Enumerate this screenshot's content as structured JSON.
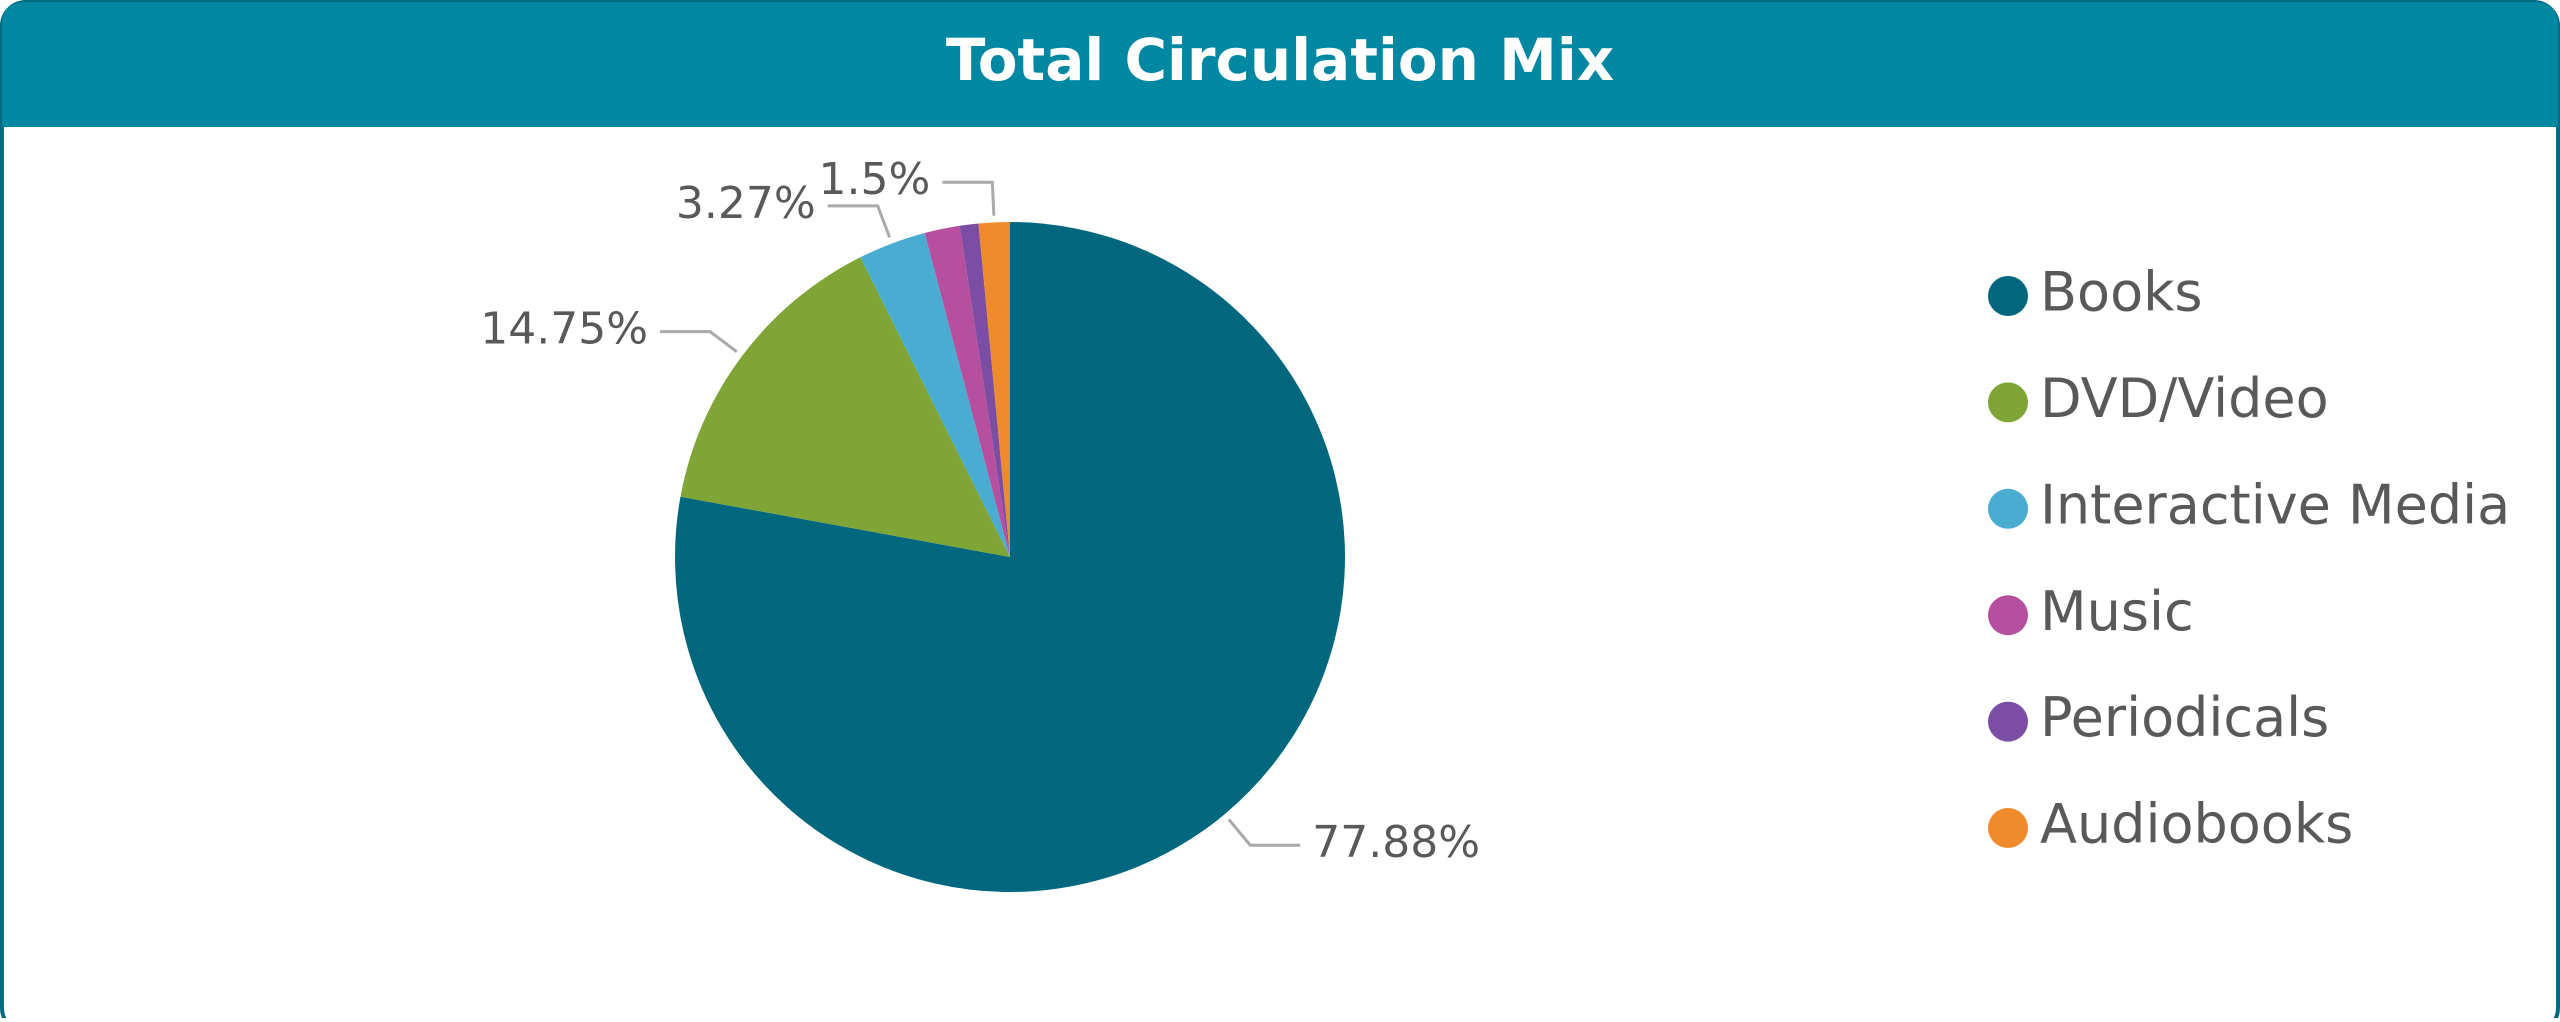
{
  "chart_data": {
    "type": "pie",
    "title": "Total Circulation Mix",
    "categories": [
      "Books",
      "DVD/Video",
      "Interactive Media",
      "Music",
      "Periodicals",
      "Audiobooks"
    ],
    "values": [
      77.88,
      14.75,
      3.27,
      1.7,
      0.9,
      1.5
    ],
    "value_labels": [
      "77.88%",
      "14.75%",
      "3.27%",
      null,
      null,
      "1.5%"
    ],
    "colors": [
      "#00677f",
      "#7ea536",
      "#4bacd2",
      "#b64f9e",
      "#7b4ea3",
      "#ef8b2c"
    ],
    "legend": "right"
  }
}
